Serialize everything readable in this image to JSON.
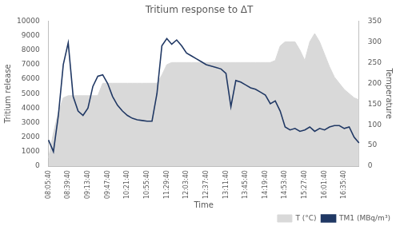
{
  "chart_data": {
    "type": "line",
    "title": "Tritium response to ΔT",
    "x_label": "Time",
    "y_label": "Tritium release",
    "y2_label": "Temperature",
    "categories": [
      "08:05:40",
      null,
      null,
      null,
      "08:39:40",
      null,
      null,
      null,
      "09:13:40",
      null,
      null,
      null,
      "09:47:40",
      null,
      null,
      null,
      "10:21:40",
      null,
      null,
      null,
      "10:55:40",
      null,
      null,
      null,
      "11:29:40",
      null,
      null,
      null,
      "12:03:40",
      null,
      null,
      null,
      "12:37:40",
      null,
      null,
      null,
      "13:11:40",
      null,
      null,
      null,
      "13:45:40",
      null,
      null,
      null,
      "14:19:40",
      null,
      null,
      null,
      "14:53:40",
      null,
      null,
      null,
      "15:27:40",
      null,
      null,
      null,
      "16:01:40",
      null,
      null,
      null,
      "16:35:40",
      null,
      null,
      null
    ],
    "series": [
      {
        "name": "T (°C)",
        "type": "area",
        "axis": "y2",
        "color": "#d9d9d9",
        "values": [
          20,
          80,
          130,
          165,
          170,
          170,
          170,
          170,
          170,
          170,
          170,
          200,
          200,
          200,
          200,
          200,
          200,
          200,
          200,
          200,
          200,
          200,
          200,
          220,
          245,
          250,
          250,
          250,
          250,
          250,
          250,
          250,
          250,
          250,
          250,
          250,
          250,
          250,
          250,
          250,
          250,
          250,
          250,
          250,
          250,
          250,
          255,
          290,
          300,
          300,
          300,
          280,
          255,
          300,
          320,
          300,
          270,
          240,
          215,
          200,
          185,
          175,
          165,
          160
        ]
      },
      {
        "name": "TM1 (MBq/m³)",
        "type": "line",
        "color": "#203864",
        "values": [
          1800,
          1000,
          3500,
          7000,
          8500,
          4800,
          3800,
          3500,
          4000,
          5500,
          6200,
          6300,
          5700,
          4800,
          4200,
          3800,
          3500,
          3300,
          3200,
          3150,
          3100,
          3100,
          5000,
          8300,
          8800,
          8400,
          8700,
          8300,
          7800,
          7600,
          7400,
          7200,
          7000,
          6900,
          6800,
          6700,
          6400,
          4100,
          5900,
          5800,
          5600,
          5400,
          5300,
          5100,
          4900,
          4300,
          4500,
          3800,
          2700,
          2500,
          2600,
          2400,
          2500,
          2700,
          2400,
          2600,
          2500,
          2700,
          2800,
          2800,
          2600,
          2700,
          2000,
          1600
        ]
      }
    ],
    "ylim": [
      0,
      10000
    ],
    "yticks": [
      0,
      1000,
      2000,
      3000,
      4000,
      5000,
      6000,
      7000,
      8000,
      9000,
      10000
    ],
    "y2lim": [
      0,
      350
    ],
    "y2ticks": [
      0,
      50,
      100,
      150,
      200,
      250,
      300,
      350
    ],
    "grid": false,
    "legend": "bottom"
  }
}
